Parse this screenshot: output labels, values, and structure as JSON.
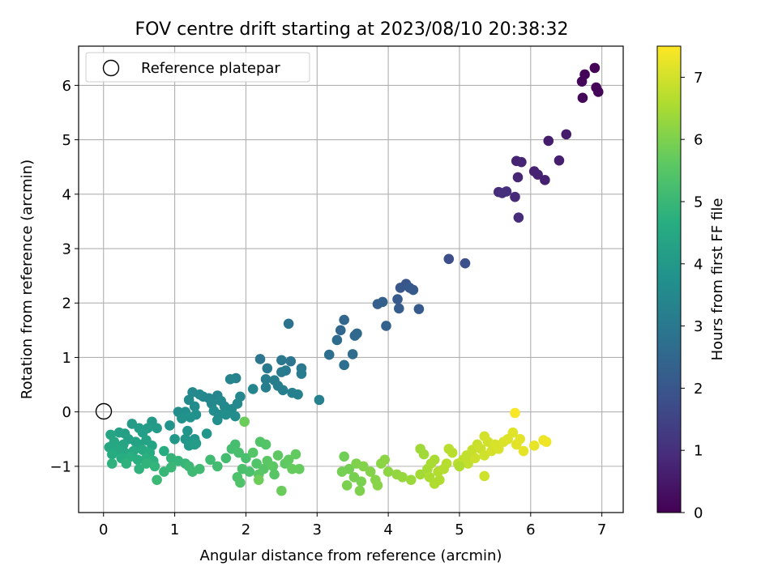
{
  "chart_data": {
    "type": "scatter",
    "title": "FOV centre drift starting at 2023/08/10 20:38:32",
    "xlabel": "Angular distance from reference (arcmin)",
    "ylabel": "Rotation from reference (arcmin)",
    "xlim": [
      -0.35,
      7.3
    ],
    "ylim": [
      -1.85,
      6.72
    ],
    "xticks": [
      0,
      1,
      2,
      3,
      4,
      5,
      6,
      7
    ],
    "yticks": [
      -1,
      0,
      1,
      2,
      3,
      4,
      5,
      6
    ],
    "grid": true,
    "legend": {
      "placement": "top-left",
      "entries": [
        "Reference platepar"
      ]
    },
    "reference_point": {
      "x": 0,
      "y": 0,
      "marker": "hollow circle"
    },
    "colorbar": {
      "label": "Hours from first FF file",
      "colormap": "viridis",
      "range": [
        0,
        7.5
      ],
      "ticks": [
        0,
        1,
        2,
        3,
        4,
        5,
        6,
        7
      ]
    },
    "series": [
      {
        "color_value": "hours",
        "points": [
          [
            6.9,
            6.32,
            0.05
          ],
          [
            6.76,
            6.2,
            0.08
          ],
          [
            6.72,
            6.07,
            0.1
          ],
          [
            6.92,
            5.96,
            0.07
          ],
          [
            6.95,
            5.88,
            0.09
          ],
          [
            6.73,
            5.77,
            0.12
          ],
          [
            6.5,
            5.1,
            0.55
          ],
          [
            6.25,
            4.98,
            0.6
          ],
          [
            6.4,
            4.62,
            0.65
          ],
          [
            5.8,
            4.61,
            0.75
          ],
          [
            5.87,
            4.59,
            0.78
          ],
          [
            6.05,
            4.42,
            0.7
          ],
          [
            6.1,
            4.36,
            0.72
          ],
          [
            6.2,
            4.26,
            0.68
          ],
          [
            5.82,
            4.31,
            0.8
          ],
          [
            5.55,
            4.04,
            0.95
          ],
          [
            5.6,
            4.02,
            1.0
          ],
          [
            5.66,
            4.05,
            0.98
          ],
          [
            5.78,
            3.95,
            0.9
          ],
          [
            5.83,
            3.57,
            0.92
          ],
          [
            4.85,
            2.81,
            1.8
          ],
          [
            5.08,
            2.73,
            1.85
          ],
          [
            4.17,
            2.28,
            2.05
          ],
          [
            4.25,
            2.35,
            2.0
          ],
          [
            4.35,
            2.24,
            2.1
          ],
          [
            4.3,
            2.28,
            2.08
          ],
          [
            4.13,
            2.07,
            2.15
          ],
          [
            4.15,
            1.9,
            2.2
          ],
          [
            4.43,
            1.89,
            2.12
          ],
          [
            3.85,
            1.98,
            2.25
          ],
          [
            3.92,
            2.02,
            2.3
          ],
          [
            3.97,
            1.58,
            2.35
          ],
          [
            3.38,
            1.69,
            2.45
          ],
          [
            3.33,
            1.5,
            2.5
          ],
          [
            3.53,
            1.4,
            2.55
          ],
          [
            3.56,
            1.44,
            2.52
          ],
          [
            3.28,
            1.32,
            2.6
          ],
          [
            3.5,
            1.06,
            2.65
          ],
          [
            3.17,
            1.05,
            2.7
          ],
          [
            3.38,
            0.86,
            2.72
          ],
          [
            2.6,
            1.62,
            2.8
          ],
          [
            2.2,
            0.97,
            2.9
          ],
          [
            2.5,
            0.95,
            2.95
          ],
          [
            2.63,
            0.93,
            2.92
          ],
          [
            2.3,
            0.8,
            3.0
          ],
          [
            2.56,
            0.76,
            3.05
          ],
          [
            2.78,
            0.8,
            3.02
          ],
          [
            2.5,
            0.73,
            3.08
          ],
          [
            2.78,
            0.7,
            3.1
          ],
          [
            2.28,
            0.6,
            3.12
          ],
          [
            2.4,
            0.58,
            3.15
          ],
          [
            2.45,
            0.48,
            3.18
          ],
          [
            2.28,
            0.45,
            3.2
          ],
          [
            2.52,
            0.4,
            3.22
          ],
          [
            2.65,
            0.35,
            3.25
          ],
          [
            2.73,
            0.32,
            3.28
          ],
          [
            3.03,
            0.22,
            3.25
          ],
          [
            1.86,
            0.62,
            3.3
          ],
          [
            1.78,
            0.6,
            3.35
          ],
          [
            2.1,
            0.42,
            3.38
          ],
          [
            1.6,
            0.3,
            3.4
          ],
          [
            1.48,
            0.25,
            3.42
          ],
          [
            1.92,
            0.28,
            3.45
          ],
          [
            1.52,
            0.15,
            3.48
          ],
          [
            1.65,
            0.2,
            3.5
          ],
          [
            1.7,
            0.1,
            3.52
          ],
          [
            1.8,
            0.05,
            3.55
          ],
          [
            1.88,
            0.15,
            3.5
          ],
          [
            1.4,
            0.28,
            3.45
          ],
          [
            1.25,
            0.36,
            3.48
          ],
          [
            1.35,
            0.32,
            3.5
          ],
          [
            1.2,
            0.22,
            3.55
          ],
          [
            1.28,
            0.1,
            3.58
          ],
          [
            1.55,
            0.02,
            3.6
          ],
          [
            1.62,
            -0.05,
            3.62
          ],
          [
            1.72,
            -0.05,
            3.65
          ],
          [
            1.85,
            -0.08,
            3.63
          ],
          [
            1.05,
            0.0,
            3.7
          ],
          [
            1.15,
            0.0,
            3.72
          ],
          [
            1.3,
            -0.05,
            3.75
          ],
          [
            1.22,
            -0.1,
            3.78
          ],
          [
            1.1,
            -0.12,
            3.8
          ],
          [
            1.6,
            -0.15,
            3.7
          ],
          [
            0.93,
            -0.25,
            3.85
          ],
          [
            1.18,
            -0.35,
            3.88
          ],
          [
            1.28,
            -0.5,
            3.9
          ],
          [
            1.45,
            -0.4,
            3.92
          ],
          [
            1.15,
            -0.5,
            3.95
          ],
          [
            1.0,
            -0.5,
            3.98
          ],
          [
            1.3,
            -0.58,
            4.0
          ],
          [
            1.2,
            -0.62,
            4.02
          ],
          [
            0.68,
            -0.18,
            4.05
          ],
          [
            0.75,
            -0.3,
            4.08
          ],
          [
            0.62,
            -0.3,
            4.1
          ],
          [
            0.4,
            -0.22,
            4.12
          ],
          [
            0.5,
            -0.3,
            4.15
          ],
          [
            0.55,
            -0.38,
            4.18
          ],
          [
            0.3,
            -0.4,
            4.2
          ],
          [
            0.22,
            -0.38,
            4.22
          ],
          [
            0.35,
            -0.5,
            4.25
          ],
          [
            0.45,
            -0.55,
            4.28
          ],
          [
            0.6,
            -0.52,
            4.3
          ],
          [
            0.68,
            -0.62,
            4.32
          ],
          [
            0.5,
            -0.6,
            4.35
          ],
          [
            0.28,
            -0.6,
            4.38
          ],
          [
            0.1,
            -0.42,
            4.4
          ],
          [
            0.15,
            -0.55,
            4.42
          ],
          [
            0.08,
            -0.65,
            4.45
          ],
          [
            0.2,
            -0.7,
            4.48
          ],
          [
            0.3,
            -0.75,
            4.5
          ],
          [
            0.42,
            -0.72,
            4.52
          ],
          [
            0.55,
            -0.7,
            4.55
          ],
          [
            0.65,
            -0.75,
            4.58
          ],
          [
            0.85,
            -0.72,
            4.6
          ],
          [
            0.12,
            -0.78,
            4.62
          ],
          [
            0.25,
            -0.85,
            4.65
          ],
          [
            0.38,
            -0.82,
            4.68
          ],
          [
            0.48,
            -0.88,
            4.7
          ],
          [
            0.6,
            -0.85,
            4.72
          ],
          [
            0.7,
            -0.9,
            4.75
          ],
          [
            0.32,
            -0.95,
            4.78
          ],
          [
            0.12,
            -0.95,
            4.8
          ],
          [
            0.5,
            -1.05,
            4.82
          ],
          [
            0.6,
            -0.95,
            4.85
          ],
          [
            0.72,
            -1.0,
            4.88
          ],
          [
            0.95,
            -0.85,
            4.9
          ],
          [
            1.05,
            -0.9,
            4.92
          ],
          [
            1.15,
            -0.95,
            4.95
          ],
          [
            0.85,
            -1.1,
            4.97
          ],
          [
            0.95,
            -1.02,
            5.0
          ],
          [
            0.75,
            -1.25,
            5.02
          ],
          [
            1.2,
            -1.0,
            5.05
          ],
          [
            1.25,
            -1.1,
            5.08
          ],
          [
            1.35,
            -1.05,
            5.1
          ],
          [
            1.5,
            -0.88,
            5.12
          ],
          [
            1.6,
            -1.0,
            5.15
          ],
          [
            1.72,
            -0.85,
            5.18
          ],
          [
            1.8,
            -0.68,
            5.2
          ],
          [
            1.85,
            -0.6,
            5.22
          ],
          [
            1.9,
            -0.75,
            5.25
          ],
          [
            2.0,
            -0.85,
            5.28
          ],
          [
            1.95,
            -1.05,
            5.3
          ],
          [
            2.05,
            -1.1,
            5.32
          ],
          [
            1.88,
            -1.2,
            5.35
          ],
          [
            1.92,
            -1.3,
            5.38
          ],
          [
            2.15,
            -0.95,
            5.4
          ],
          [
            2.2,
            -0.55,
            5.42
          ],
          [
            2.28,
            -0.6,
            5.45
          ],
          [
            2.1,
            -0.75,
            5.48
          ],
          [
            2.25,
            -1.05,
            5.5
          ],
          [
            2.18,
            -1.15,
            5.52
          ],
          [
            2.3,
            -0.9,
            5.55
          ],
          [
            2.38,
            -1.0,
            5.58
          ],
          [
            2.45,
            -0.8,
            5.6
          ],
          [
            2.55,
            -0.95,
            5.62
          ],
          [
            2.6,
            -0.88,
            5.65
          ],
          [
            2.7,
            -0.78,
            5.68
          ],
          [
            2.75,
            -1.05,
            5.7
          ],
          [
            2.65,
            -1.05,
            5.72
          ],
          [
            2.5,
            -1.45,
            5.75
          ],
          [
            1.98,
            -0.18,
            5.78
          ],
          [
            2.18,
            -1.25,
            5.8
          ],
          [
            2.4,
            -1.15,
            5.5
          ],
          [
            1.28,
            -0.6,
            4.1
          ],
          [
            3.38,
            -0.82,
            5.85
          ],
          [
            3.45,
            -1.05,
            5.88
          ],
          [
            3.35,
            -1.1,
            5.9
          ],
          [
            3.52,
            -1.2,
            5.92
          ],
          [
            3.62,
            -1.28,
            5.95
          ],
          [
            3.42,
            -1.35,
            5.98
          ],
          [
            3.6,
            -1.45,
            6.0
          ],
          [
            3.55,
            -0.95,
            6.02
          ],
          [
            3.65,
            -1.0,
            6.05
          ],
          [
            3.75,
            -1.1,
            6.08
          ],
          [
            3.82,
            -1.25,
            6.1
          ],
          [
            3.85,
            -1.35,
            6.12
          ],
          [
            3.9,
            -0.95,
            6.15
          ],
          [
            3.95,
            -0.88,
            6.18
          ],
          [
            4.0,
            -1.1,
            6.2
          ],
          [
            4.12,
            -1.15,
            6.25
          ],
          [
            4.2,
            -1.2,
            6.3
          ],
          [
            4.32,
            -1.25,
            6.35
          ],
          [
            4.45,
            -0.68,
            6.4
          ],
          [
            4.5,
            -0.78,
            6.42
          ],
          [
            4.45,
            -1.15,
            6.45
          ],
          [
            4.55,
            -1.05,
            6.48
          ],
          [
            4.6,
            -0.95,
            6.5
          ],
          [
            4.65,
            -0.88,
            6.52
          ],
          [
            4.58,
            -1.2,
            6.55
          ],
          [
            4.65,
            -1.32,
            6.58
          ],
          [
            4.72,
            -1.25,
            6.6
          ],
          [
            4.7,
            -1.1,
            6.62
          ],
          [
            4.78,
            -1.05,
            6.65
          ],
          [
            4.82,
            -0.95,
            6.68
          ],
          [
            4.85,
            -0.68,
            6.7
          ],
          [
            4.9,
            -0.75,
            6.72
          ],
          [
            4.98,
            -0.95,
            6.75
          ],
          [
            5.05,
            -0.88,
            6.78
          ],
          [
            5.1,
            -0.8,
            6.8
          ],
          [
            5.12,
            -0.95,
            6.82
          ],
          [
            5.18,
            -0.7,
            6.85
          ],
          [
            5.25,
            -0.6,
            6.88
          ],
          [
            5.3,
            -0.68,
            6.9
          ],
          [
            5.22,
            -0.85,
            6.92
          ],
          [
            5.35,
            -0.8,
            6.95
          ],
          [
            5.4,
            -0.55,
            6.98
          ],
          [
            5.35,
            -0.45,
            7.0
          ],
          [
            5.45,
            -0.72,
            7.02
          ],
          [
            5.5,
            -0.6,
            7.05
          ],
          [
            5.55,
            -0.68,
            7.08
          ],
          [
            5.62,
            -0.55,
            7.1
          ],
          [
            5.68,
            -0.5,
            7.12
          ],
          [
            5.75,
            -0.38,
            7.15
          ],
          [
            5.8,
            -0.6,
            7.18
          ],
          [
            5.85,
            -0.5,
            7.2
          ],
          [
            5.9,
            -0.72,
            7.22
          ],
          [
            6.05,
            -0.62,
            7.25
          ],
          [
            6.18,
            -0.52,
            7.3
          ],
          [
            6.22,
            -0.55,
            7.32
          ],
          [
            5.35,
            -1.18,
            6.95
          ],
          [
            5.78,
            -0.02,
            7.45
          ],
          [
            5.0,
            -1.0,
            6.6
          ]
        ]
      }
    ]
  }
}
